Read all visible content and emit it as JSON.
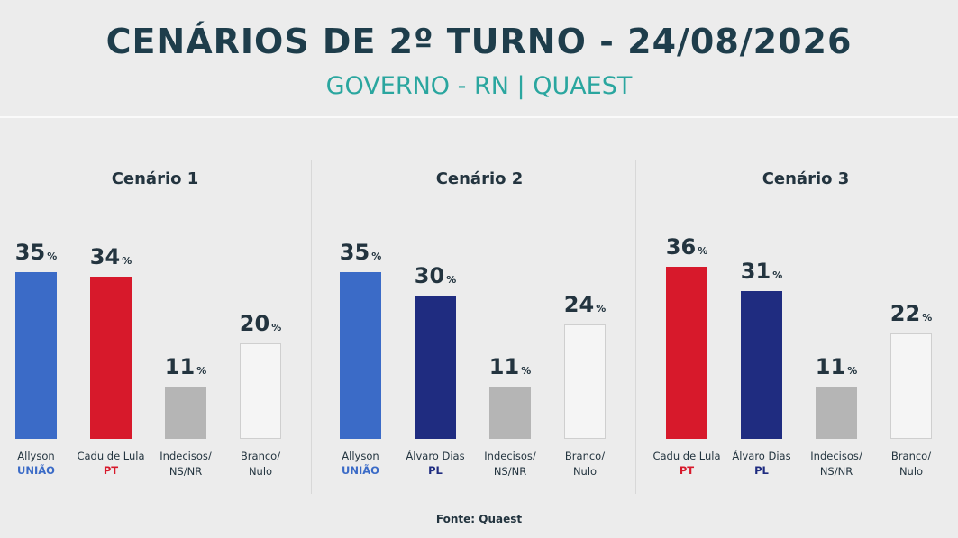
{
  "title": "CENÁRIOS DE 2º TURNO - 24/08/2026",
  "subtitle": "GOVERNO - RN | QUAEST",
  "source": "Fonte: Quaest",
  "chart_data": [
    {
      "type": "bar",
      "title": "Cenário 1",
      "categories": [
        "Allyson",
        "Cadu de Lula",
        "Indecisos/\nNS/NR",
        "Branco/\nNulo"
      ],
      "parties": [
        "UNIÃO",
        "PT",
        null,
        null
      ],
      "values": [
        35,
        34,
        11,
        20
      ],
      "unit": "%",
      "colors": [
        "#3b6bc7",
        "#d7192b",
        "#b5b5b5",
        "#f5f5f5"
      ]
    },
    {
      "type": "bar",
      "title": "Cenário 2",
      "categories": [
        "Allyson",
        "Álvaro Dias",
        "Indecisos/\nNS/NR",
        "Branco/\nNulo"
      ],
      "parties": [
        "UNIÃO",
        "PL",
        null,
        null
      ],
      "values": [
        35,
        30,
        11,
        24
      ],
      "unit": "%",
      "colors": [
        "#3b6bc7",
        "#1f2c80",
        "#b5b5b5",
        "#f5f5f5"
      ]
    },
    {
      "type": "bar",
      "title": "Cenário 3",
      "categories": [
        "Cadu de Lula",
        "Álvaro Dias",
        "Indecisos/\nNS/NR",
        "Branco/\nNulo"
      ],
      "parties": [
        "PT",
        "PL",
        null,
        null
      ],
      "values": [
        36,
        31,
        11,
        22
      ],
      "unit": "%",
      "colors": [
        "#d7192b",
        "#1f2c80",
        "#b5b5b5",
        "#f5f5f5"
      ]
    }
  ]
}
